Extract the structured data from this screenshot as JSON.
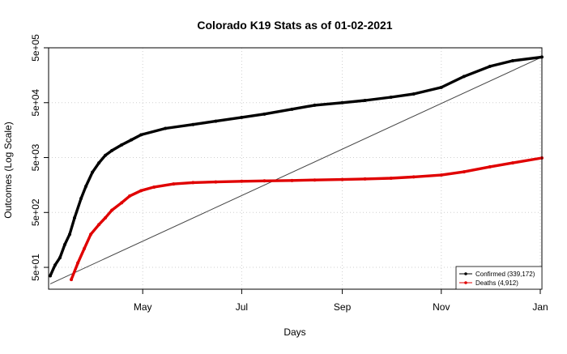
{
  "chart_data": {
    "type": "line",
    "title": "Colorado K19 Stats as of 01-02-2021",
    "xlabel": "Days",
    "ylabel": "Outcomes (Log Scale)",
    "y_scale": "log10",
    "ylim": [
      20,
      500000
    ],
    "xlim": [
      "2020-03-04",
      "2021-01-02"
    ],
    "grid": true,
    "legend_position": "bottom-right",
    "x_ticks": [
      {
        "date": "2020-05-01",
        "label": "May"
      },
      {
        "date": "2020-07-01",
        "label": "Jul"
      },
      {
        "date": "2020-09-01",
        "label": "Sep"
      },
      {
        "date": "2020-11-01",
        "label": "Nov"
      },
      {
        "date": "2021-01-01",
        "label": "Jan"
      }
    ],
    "y_ticks": [
      {
        "value": 50,
        "label": "5e+01"
      },
      {
        "value": 500,
        "label": "5e+02"
      },
      {
        "value": 5000,
        "label": "5e+03"
      },
      {
        "value": 50000,
        "label": "5e+04"
      },
      {
        "value": 500000,
        "label": "5e+05"
      }
    ],
    "series": [
      {
        "name": "Confirmed (339,172)",
        "color": "#000000",
        "x": [
          "2020-03-05",
          "2020-03-08",
          "2020-03-11",
          "2020-03-14",
          "2020-03-17",
          "2020-03-20",
          "2020-03-24",
          "2020-03-27",
          "2020-03-31",
          "2020-04-04",
          "2020-04-08",
          "2020-04-12",
          "2020-04-18",
          "2020-04-24",
          "2020-04-30",
          "2020-05-15",
          "2020-06-01",
          "2020-06-15",
          "2020-07-01",
          "2020-07-15",
          "2020-08-01",
          "2020-08-15",
          "2020-09-01",
          "2020-09-15",
          "2020-10-01",
          "2020-10-15",
          "2020-11-01",
          "2020-11-15",
          "2020-12-01",
          "2020-12-15",
          "2021-01-02"
        ],
        "y": [
          35,
          55,
          75,
          130,
          200,
          400,
          900,
          1500,
          2700,
          4000,
          5500,
          6700,
          8500,
          10500,
          13000,
          17000,
          20000,
          23000,
          27000,
          31000,
          38000,
          45000,
          50000,
          55000,
          63000,
          72000,
          95000,
          150000,
          230000,
          290000,
          339172
        ]
      },
      {
        "name": "Deaths (4,912)",
        "color": "#e00000",
        "x": [
          "2020-03-18",
          "2020-03-22",
          "2020-03-26",
          "2020-03-30",
          "2020-04-04",
          "2020-04-08",
          "2020-04-12",
          "2020-04-18",
          "2020-04-23",
          "2020-04-30",
          "2020-05-08",
          "2020-05-20",
          "2020-06-01",
          "2020-06-15",
          "2020-07-01",
          "2020-07-15",
          "2020-08-01",
          "2020-08-15",
          "2020-09-01",
          "2020-09-15",
          "2020-10-01",
          "2020-10-15",
          "2020-11-01",
          "2020-11-15",
          "2020-12-01",
          "2020-12-15",
          "2021-01-02"
        ],
        "y": [
          30,
          60,
          110,
          200,
          300,
          400,
          550,
          750,
          1000,
          1250,
          1450,
          1650,
          1750,
          1800,
          1850,
          1880,
          1910,
          1950,
          1990,
          2040,
          2100,
          2220,
          2400,
          2750,
          3400,
          4000,
          4912
        ]
      },
      {
        "name": "",
        "color": "#444444",
        "x": [
          "2020-03-05",
          "2021-01-02"
        ],
        "y": [
          25,
          339172
        ]
      }
    ]
  }
}
